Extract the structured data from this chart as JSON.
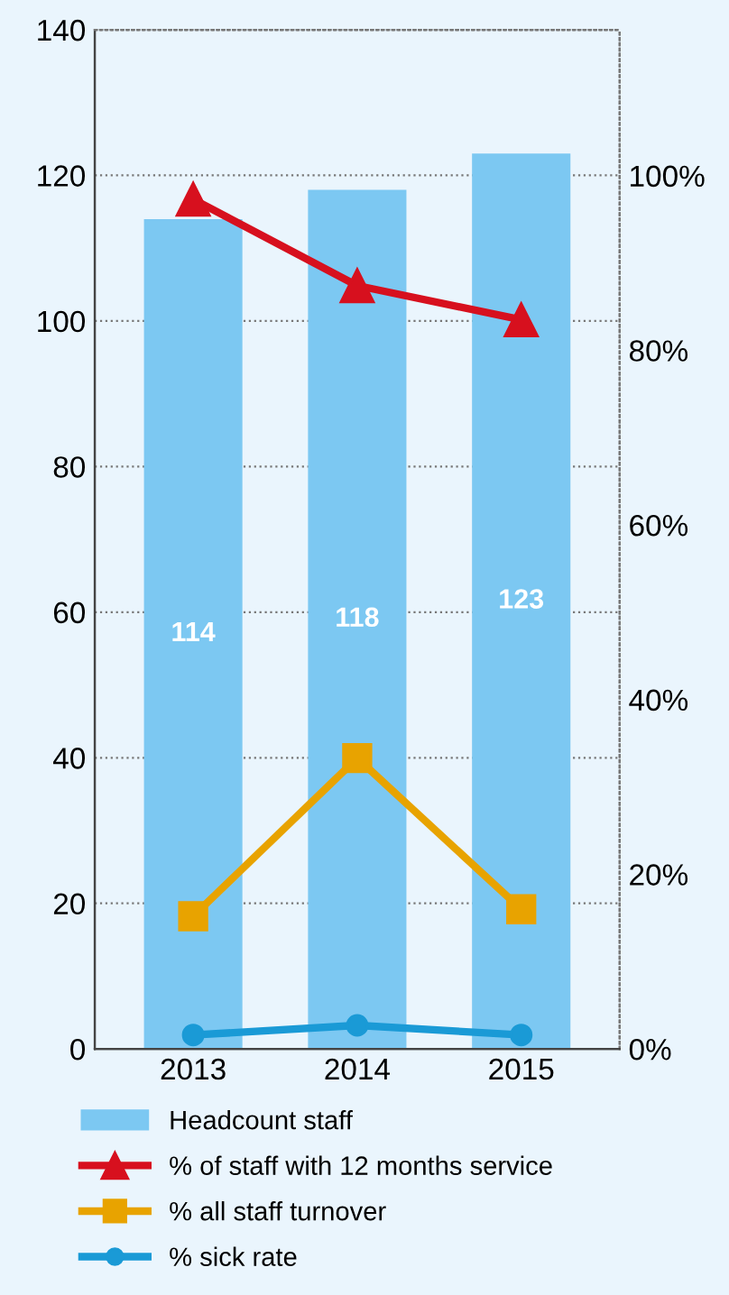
{
  "chart_data": {
    "type": "bar",
    "categories": [
      "2013",
      "2014",
      "2015"
    ],
    "series": [
      {
        "name": "Headcount staff",
        "color": "#7cc8f2",
        "values": [
          114,
          118,
          123
        ],
        "data_labels": true
      },
      {
        "name": "% of staff with 12 months service",
        "type": "line",
        "axis": "y2",
        "color": "#d7101e",
        "marker": "triangle",
        "values": [
          97.3,
          87.4,
          83.5
        ]
      },
      {
        "name": "% all staff turnover",
        "type": "line",
        "axis": "y2",
        "color": "#e8a300",
        "marker": "square",
        "values": [
          15.2,
          33.3,
          16
        ]
      },
      {
        "name": "% sick rate",
        "type": "line",
        "axis": "y2",
        "color": "#1a9ad6",
        "marker": "circle",
        "values": [
          1.6,
          2.7,
          1.6
        ]
      }
    ],
    "ylim": [
      0,
      140
    ],
    "yticks": [
      0,
      20,
      40,
      60,
      80,
      100,
      120,
      140
    ],
    "y2lim": [
      0,
      116.7
    ],
    "y2ticks": [
      {
        "value": 0,
        "label": "0%"
      },
      {
        "value": 20,
        "label": "20%"
      },
      {
        "value": 40,
        "label": "40%"
      },
      {
        "value": 60,
        "label": "60%"
      },
      {
        "value": 80,
        "label": "80%"
      },
      {
        "value": 100,
        "label": "100%"
      }
    ],
    "grid": "y",
    "legend": "bottom"
  }
}
